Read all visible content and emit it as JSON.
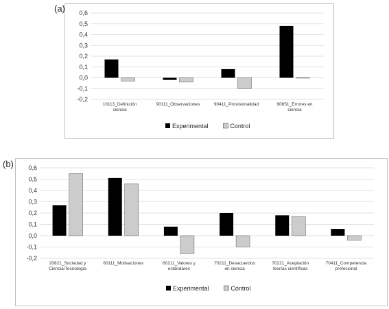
{
  "chart_data": [
    {
      "type": "bar",
      "panel_label": "(a)",
      "categories": [
        [
          "10113_Definición",
          "ciencia"
        ],
        [
          "90111_Observaciones"
        ],
        [
          "90411_Provisionalidad"
        ],
        [
          "90651_Errores en",
          "ciencia"
        ]
      ],
      "series": [
        {
          "name": "Experimental",
          "color": "#000000",
          "values": [
            0.17,
            -0.02,
            0.08,
            0.48
          ]
        },
        {
          "name": "Control",
          "color": "#cccccc",
          "values": [
            -0.03,
            -0.04,
            -0.1,
            0.0
          ]
        }
      ],
      "ylim": [
        -0.2,
        0.6
      ],
      "yticks": [
        "0,6",
        "0,5",
        "0,4",
        "0,3",
        "0,2",
        "0,1",
        "0,0",
        "-0,1",
        "-0,2"
      ],
      "grid": true,
      "legend": "bottom-center"
    },
    {
      "type": "bar",
      "panel_label": "(b)",
      "categories": [
        [
          "20821_Sociedad y",
          "Ciencia/Tecnología"
        ],
        [
          "60111_Motivaciones"
        ],
        [
          "60211_Valores y",
          "estándares"
        ],
        [
          "70211_Desacuerdos",
          "en ciencia"
        ],
        [
          "70221_Aceptación",
          "teorías científicas"
        ],
        [
          "70411_Competencia",
          "profesional"
        ]
      ],
      "series": [
        {
          "name": "Experimental",
          "color": "#000000",
          "values": [
            0.27,
            0.51,
            0.08,
            0.2,
            0.18,
            0.06
          ]
        },
        {
          "name": "Control",
          "color": "#cccccc",
          "values": [
            0.55,
            0.46,
            -0.16,
            -0.1,
            0.17,
            -0.04
          ]
        }
      ],
      "ylim": [
        -0.2,
        0.6
      ],
      "yticks": [
        "0,6",
        "0,5",
        "0,4",
        "0,3",
        "0,2",
        "0,1",
        "0,0",
        "-0,1",
        "-0,2"
      ],
      "grid": true,
      "legend": "bottom-center"
    }
  ]
}
